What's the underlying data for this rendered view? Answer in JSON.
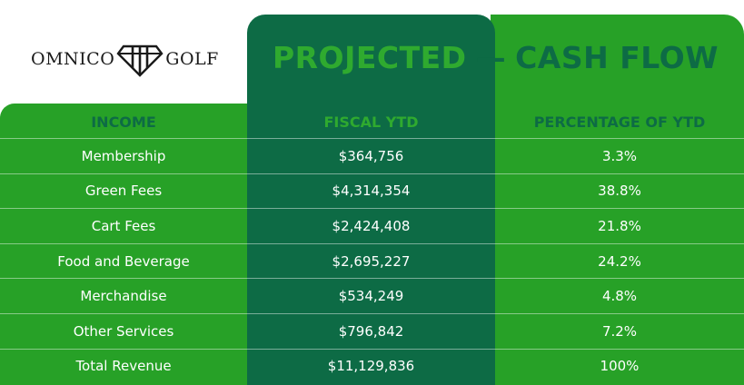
{
  "brand": {
    "left_word": "OMNICO",
    "right_word": "GOLF"
  },
  "title": {
    "word1": "PROJECTED",
    "dash": "—",
    "word2": "CASH FLOW"
  },
  "table": {
    "headers": [
      "INCOME",
      "FISCAL YTD",
      "PERCENTAGE OF YTD"
    ],
    "rows": [
      [
        "Membership",
        "$364,756",
        "3.3%"
      ],
      [
        "Green Fees",
        "$4,314,354",
        "38.8%"
      ],
      [
        "Cart Fees",
        "$2,424,408",
        "21.8%"
      ],
      [
        "Food and Beverage",
        "$2,695,227",
        "24.2%"
      ],
      [
        "Merchandise",
        "$534,249",
        "4.8%"
      ],
      [
        "Other Services",
        "$796,842",
        "7.2%"
      ],
      [
        "Total Revenue",
        "$11,129,836",
        "100%"
      ]
    ]
  },
  "colors": {
    "green": "#27a127",
    "dark_green": "#0d6b45",
    "light_green_text": "#2faa2f"
  },
  "icons": {
    "logo_mark": "diamond-gem-icon"
  }
}
